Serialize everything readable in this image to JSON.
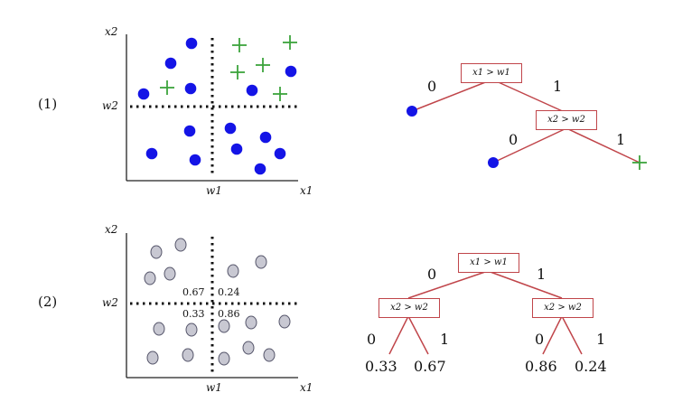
{
  "panels": [
    {
      "index_label": "(1)",
      "scatter": {
        "y_axis_label": "x2",
        "x_axis_label": "x1",
        "y_tick_label": "w2",
        "x_tick_label": "w1",
        "cell_labels": []
      },
      "tree": {
        "root": "x1 > w1",
        "root_left_branch": "0",
        "root_right_branch": "1",
        "child": "x2 > w2",
        "child_left_branch": "0",
        "child_right_branch": "1"
      }
    },
    {
      "index_label": "(2)",
      "scatter": {
        "y_axis_label": "x2",
        "x_axis_label": "x1",
        "y_tick_label": "w2",
        "x_tick_label": "w1",
        "cell_labels": [
          "0.67",
          "0.24",
          "0.33",
          "0.86"
        ]
      },
      "tree": {
        "root": "x1 > w1",
        "root_left_branch": "0",
        "root_right_branch": "1",
        "left_child": "x2 > w2",
        "right_child": "x2 > w2",
        "left_child_branches": [
          "0",
          "1"
        ],
        "right_child_branches": [
          "0",
          "1"
        ],
        "leaf_values": [
          "0.33",
          "0.67",
          "0.86",
          "0.24"
        ]
      }
    }
  ],
  "colors": {
    "blue_point": "#1414e6",
    "green_plus": "#3ca43c",
    "gray_point_fill": "#c8c8d2",
    "gray_point_stroke": "#55556a",
    "tree_edge": "#c0454a",
    "axis": "#222222"
  }
}
